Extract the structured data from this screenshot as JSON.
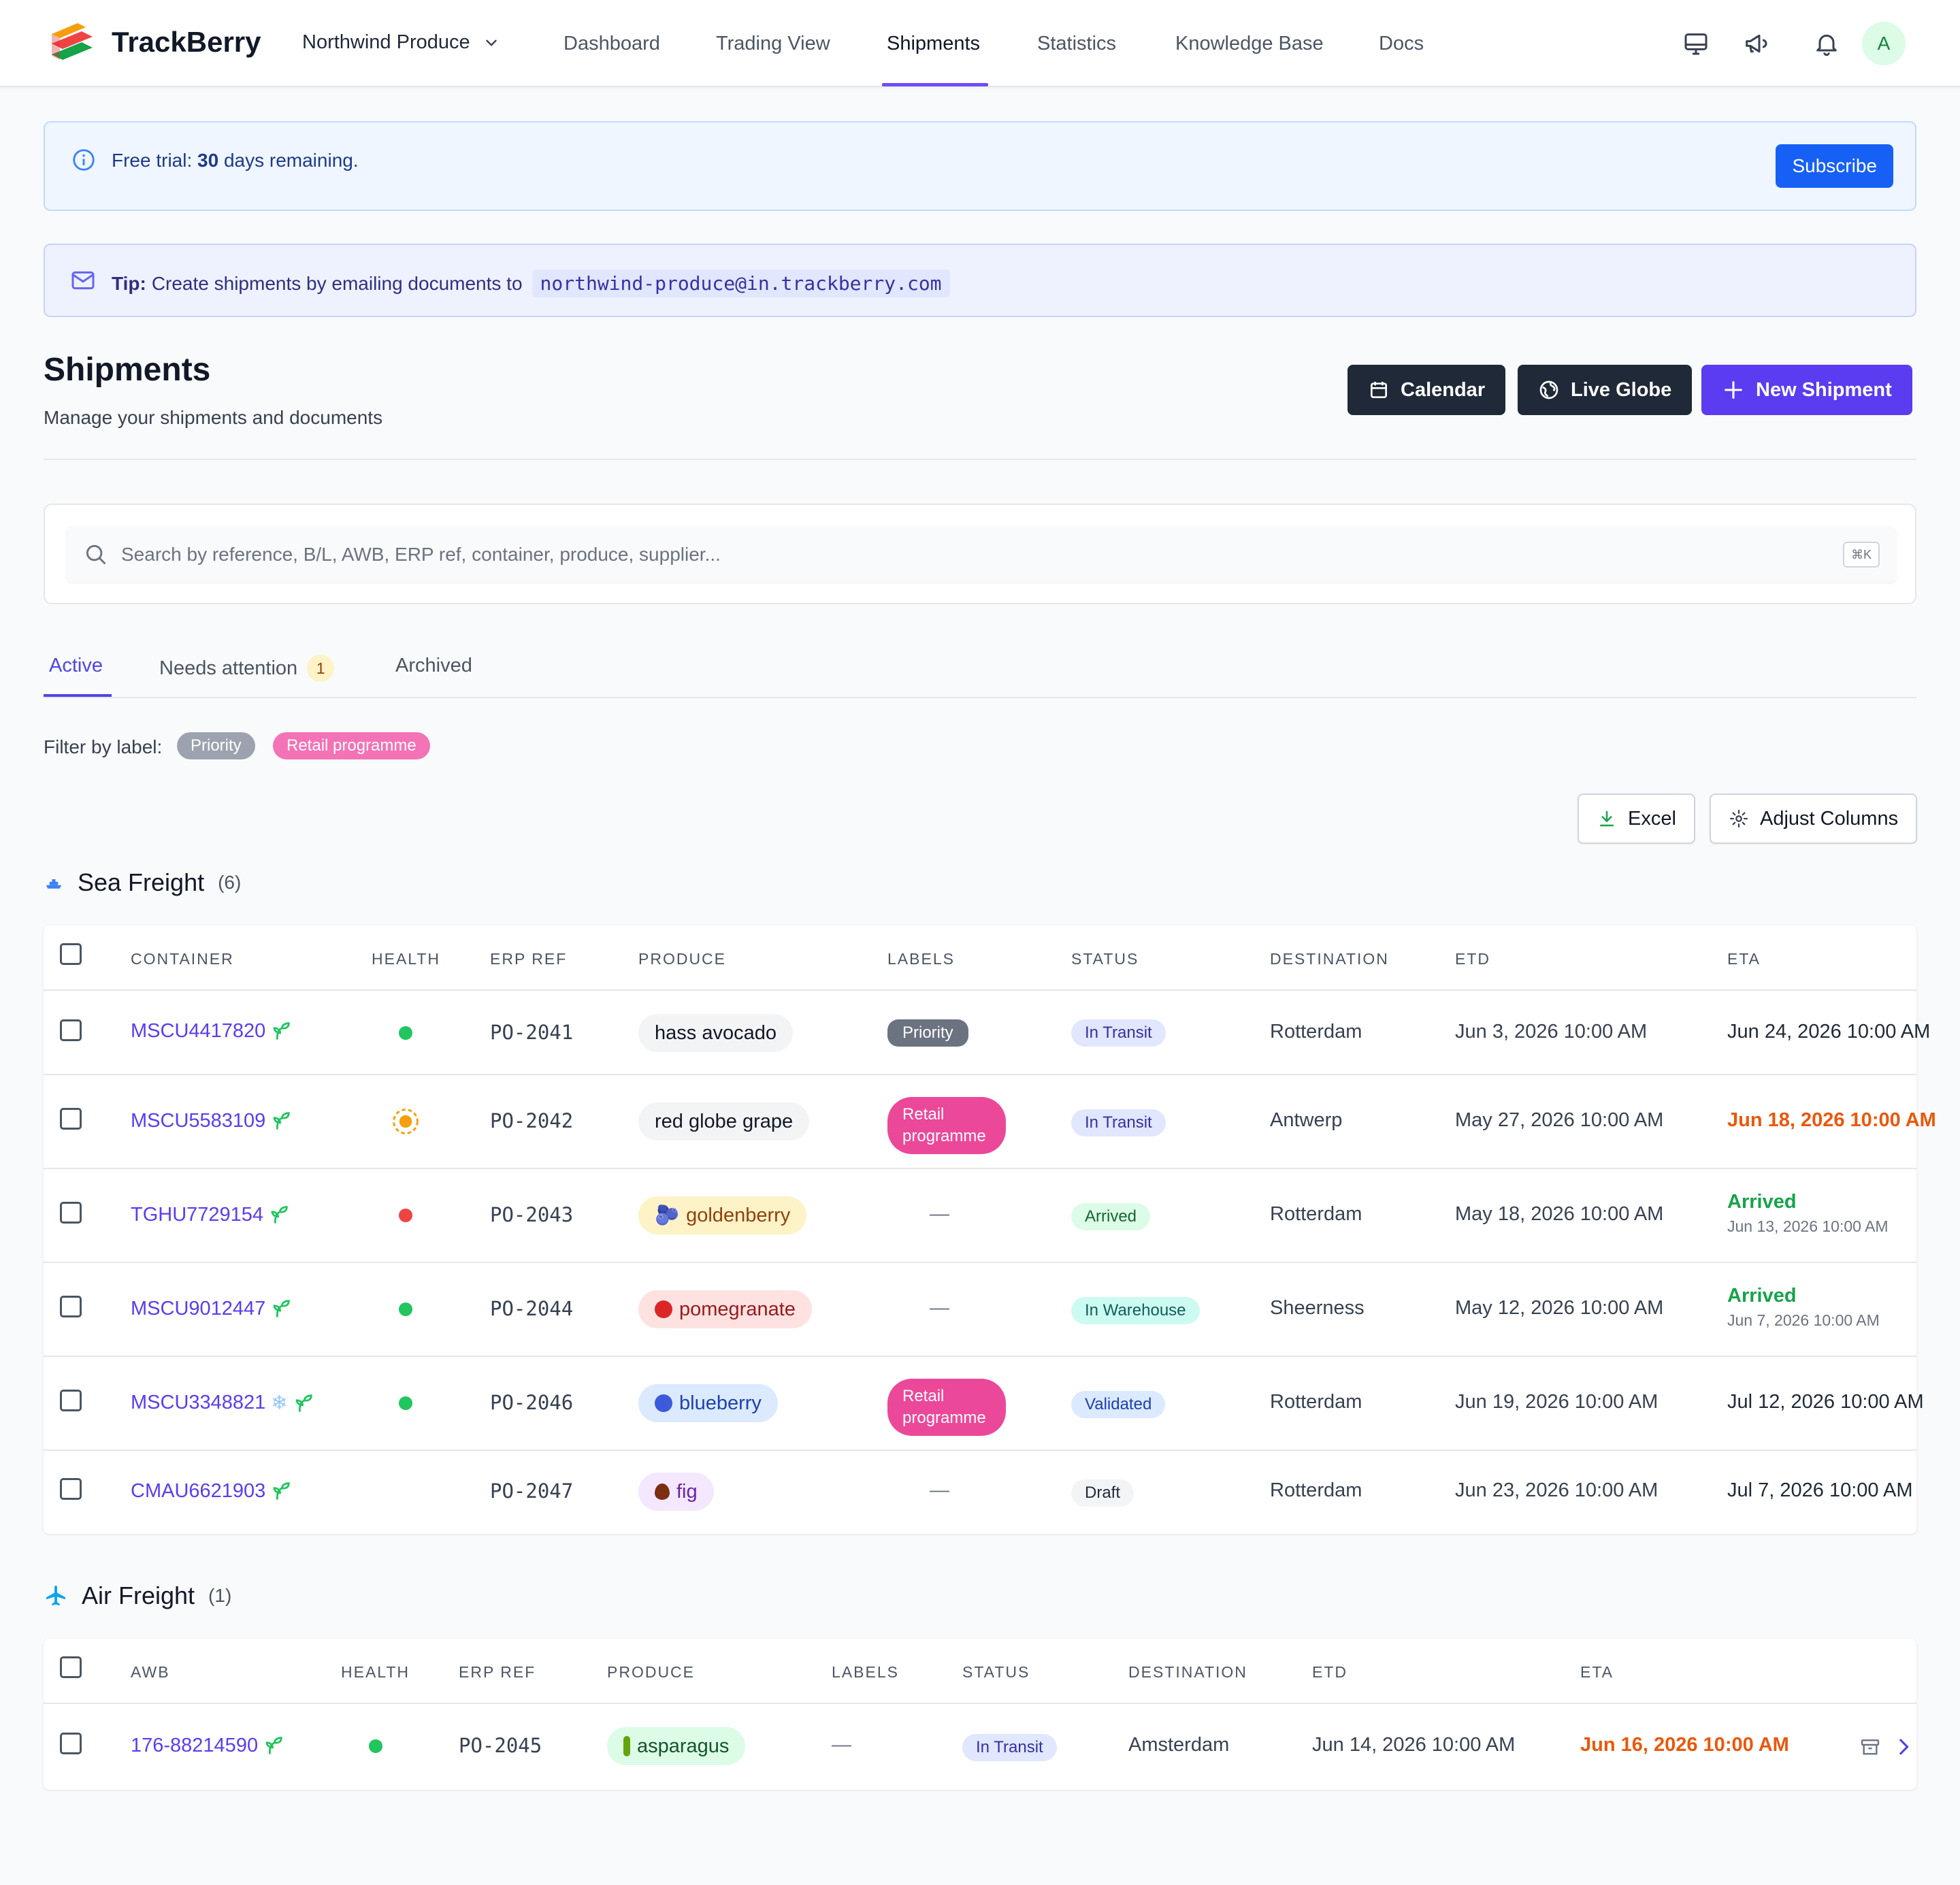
{
  "nav": {
    "brand": "TrackBerry",
    "org": "Northwind Produce",
    "links": [
      "Dashboard",
      "Trading View",
      "Shipments",
      "Statistics",
      "Knowledge Base",
      "Docs"
    ],
    "active": "Shipments",
    "avatar": "A"
  },
  "trial": {
    "prefix": "Free trial:",
    "days": "30",
    "suffix": "days remaining.",
    "button": "Subscribe"
  },
  "tip": {
    "label": "Tip:",
    "text": "Create shipments by emailing documents to",
    "email": "northwind-produce@in.trackberry.com"
  },
  "page": {
    "title": "Shipments",
    "subtitle": "Manage your shipments and documents",
    "calendar": "Calendar",
    "live_globe": "Live Globe",
    "new_shipment": "New Shipment"
  },
  "search": {
    "placeholder": "Search by reference, B/L, AWB, ERP ref, container, produce, supplier...",
    "shortcut": "⌘K"
  },
  "tabs": {
    "active": "Active",
    "needs_attention": "Needs attention",
    "needs_attention_count": "1",
    "archived": "Archived"
  },
  "filter": {
    "label": "Filter by label:",
    "chips": [
      "Priority",
      "Retail programme"
    ]
  },
  "actions": {
    "excel": "Excel",
    "adjust_columns": "Adjust Columns"
  },
  "sea": {
    "title": "Sea Freight",
    "count": "(6)",
    "headers": [
      "CONTAINER",
      "HEALTH",
      "ERP REF",
      "PRODUCE",
      "LABELS",
      "STATUS",
      "DESTINATION",
      "ETD",
      "ETA"
    ],
    "rows": [
      {
        "container": "MSCU4417820",
        "health": "green",
        "erp": "PO-2041",
        "produce": "hass avocado",
        "label": "Priority",
        "status": "In Transit",
        "destination": "Rotterdam",
        "etd": "Jun 3, 2026 10:00 AM",
        "eta": "Jun 24, 2026 10:00 AM"
      },
      {
        "container": "MSCU5583109",
        "health": "warning",
        "erp": "PO-2042",
        "produce": "red globe grape",
        "label": "Retail programme",
        "status": "In Transit",
        "destination": "Antwerp",
        "etd": "May 27, 2026 10:00 AM",
        "eta": "Jun 18, 2026 10:00 AM"
      },
      {
        "container": "TGHU7729154",
        "health": "red",
        "erp": "PO-2043",
        "produce": "goldenberry",
        "label": "—",
        "status": "Arrived",
        "destination": "Rotterdam",
        "etd": "May 18, 2026 10:00 AM",
        "eta_status": "Arrived",
        "eta": "Jun 13, 2026 10:00 AM"
      },
      {
        "container": "MSCU9012447",
        "health": "green",
        "erp": "PO-2044",
        "produce": "pomegranate",
        "label": "—",
        "status": "In Warehouse",
        "destination": "Sheerness",
        "etd": "May 12, 2026 10:00 AM",
        "eta_status": "Arrived",
        "eta": "Jun 7, 2026 10:00 AM"
      },
      {
        "container": "MSCU3348821",
        "health": "green",
        "erp": "PO-2046",
        "produce": "blueberry",
        "label": "Retail programme",
        "status": "Validated",
        "destination": "Rotterdam",
        "etd": "Jun 19, 2026 10:00 AM",
        "eta": "Jul 12, 2026 10:00 AM"
      },
      {
        "container": "CMAU6621903",
        "health": "none",
        "erp": "PO-2047",
        "produce": "fig",
        "label": "—",
        "status": "Draft",
        "destination": "Rotterdam",
        "etd": "Jun 23, 2026 10:00 AM",
        "eta": "Jul 7, 2026 10:00 AM"
      }
    ]
  },
  "air": {
    "title": "Air Freight",
    "count": "(1)",
    "headers": [
      "AWB",
      "HEALTH",
      "ERP REF",
      "PRODUCE",
      "LABELS",
      "STATUS",
      "DESTINATION",
      "ETD",
      "ETA"
    ],
    "rows": [
      {
        "awb": "176-88214590",
        "health": "green",
        "erp": "PO-2045",
        "produce": "asparagus",
        "label": "—",
        "status": "In Transit",
        "destination": "Amsterdam",
        "etd": "Jun 14, 2026 10:00 AM",
        "eta": "Jun 16, 2026 10:00 AM"
      }
    ]
  },
  "colors": {
    "accent": "#5b3cf0",
    "subscribe": "#1660f5",
    "health_green": "#22c55e",
    "health_red": "#ef4444",
    "health_warning": "#f59e0b",
    "late_eta": "#ea580c"
  }
}
